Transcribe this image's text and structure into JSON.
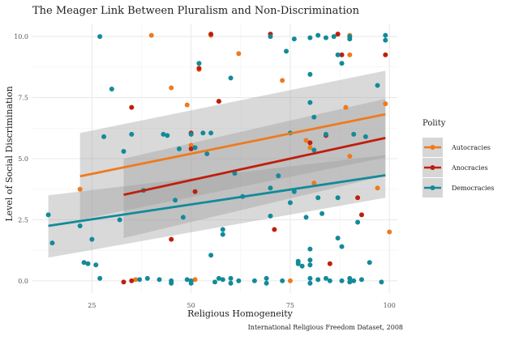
{
  "chart_data": {
    "type": "scatter",
    "title": "The Meager Link Between Pluralism and Non-Discrimination",
    "xlabel": "Religious Homogeneity",
    "ylabel": "Level of Social Discrimination",
    "caption": "International Religious Freedom Dataset, 2008",
    "xlim": [
      10,
      102
    ],
    "ylim": [
      -0.5,
      10.5
    ],
    "x_ticks": [
      25,
      50,
      75,
      100
    ],
    "y_ticks": [
      0.0,
      2.5,
      5.0,
      7.5,
      10.0
    ],
    "x_tick_labels": [
      "25",
      "50",
      "75",
      "100"
    ],
    "y_tick_labels": [
      "0.0",
      "2.5",
      "5.0",
      "7.5",
      "10.0"
    ],
    "grid": true,
    "legend": {
      "title": "Polity",
      "position": "right"
    },
    "series": [
      {
        "name": "Autocracies",
        "color": "#ee7a1f",
        "fit": {
          "x0": 22,
          "y0": 4.28,
          "x1": 99,
          "y1": 6.82,
          "ci_low_start": 2.5,
          "ci_high_start": 6.05,
          "ci_low_end": 5.05,
          "ci_high_end": 8.6
        },
        "points": [
          [
            22,
            3.75
          ],
          [
            36,
            0.05
          ],
          [
            40,
            10.05
          ],
          [
            45,
            7.9
          ],
          [
            49,
            7.2
          ],
          [
            50,
            5.55
          ],
          [
            51,
            0.05
          ],
          [
            52,
            8.65
          ],
          [
            55,
            10.05
          ],
          [
            57,
            7.35
          ],
          [
            62,
            9.3
          ],
          [
            73,
            8.2
          ],
          [
            75,
            0.0
          ],
          [
            79,
            5.75
          ],
          [
            80,
            5.45
          ],
          [
            81,
            4.0
          ],
          [
            87,
            10.1
          ],
          [
            89,
            7.1
          ],
          [
            90,
            9.25
          ],
          [
            90,
            5.1
          ],
          [
            90,
            10.05
          ],
          [
            97,
            3.8
          ],
          [
            99,
            7.25
          ],
          [
            100,
            2.0
          ]
        ]
      },
      {
        "name": "Anocracies",
        "color": "#bf1e0d",
        "fit": {
          "x0": 33,
          "y0": 3.52,
          "x1": 99,
          "y1": 5.85,
          "ci_low_start": 1.75,
          "ci_high_start": 5.0,
          "ci_low_end": 4.3,
          "ci_high_end": 7.45
        },
        "points": [
          [
            33,
            -0.05
          ],
          [
            35,
            0.0
          ],
          [
            35,
            7.1
          ],
          [
            45,
            1.7
          ],
          [
            50,
            6.05
          ],
          [
            50,
            5.4
          ],
          [
            51,
            3.65
          ],
          [
            52,
            8.7
          ],
          [
            55,
            10.1
          ],
          [
            57,
            7.35
          ],
          [
            70,
            10.1
          ],
          [
            71,
            2.1
          ],
          [
            80,
            5.65
          ],
          [
            84,
            5.95
          ],
          [
            85,
            0.7
          ],
          [
            87,
            10.1
          ],
          [
            88,
            9.25
          ],
          [
            92,
            3.4
          ],
          [
            93,
            2.7
          ],
          [
            99,
            9.25
          ]
        ]
      },
      {
        "name": "Democracies",
        "color": "#138a99",
        "fit": {
          "x0": 14,
          "y0": 2.25,
          "x1": 99,
          "y1": 4.32,
          "ci_low_start": 0.95,
          "ci_high_start": 3.5,
          "ci_low_end": 3.4,
          "ci_high_end": 5.15
        },
        "points": [
          [
            14,
            2.7
          ],
          [
            15,
            1.55
          ],
          [
            22,
            2.25
          ],
          [
            23,
            0.75
          ],
          [
            24,
            0.7
          ],
          [
            25,
            1.7
          ],
          [
            26,
            0.65
          ],
          [
            27,
            0.1
          ],
          [
            27,
            10.0
          ],
          [
            28,
            5.9
          ],
          [
            30,
            7.85
          ],
          [
            32,
            2.5
          ],
          [
            33,
            5.3
          ],
          [
            35,
            6.0
          ],
          [
            37,
            0.05
          ],
          [
            38,
            3.7
          ],
          [
            39,
            0.1
          ],
          [
            42,
            0.05
          ],
          [
            43,
            6.0
          ],
          [
            44,
            5.95
          ],
          [
            45,
            0.0
          ],
          [
            45,
            -0.1
          ],
          [
            46,
            3.3
          ],
          [
            47,
            5.4
          ],
          [
            48,
            2.6
          ],
          [
            49,
            0.05
          ],
          [
            50,
            -0.1
          ],
          [
            50,
            0.0
          ],
          [
            50,
            6.0
          ],
          [
            51,
            5.45
          ],
          [
            52,
            8.9
          ],
          [
            53,
            6.05
          ],
          [
            54,
            5.2
          ],
          [
            55,
            6.05
          ],
          [
            55,
            1.05
          ],
          [
            56,
            -0.05
          ],
          [
            57,
            0.1
          ],
          [
            58,
            1.9
          ],
          [
            58,
            2.1
          ],
          [
            58,
            0.05
          ],
          [
            60,
            8.3
          ],
          [
            60,
            0.1
          ],
          [
            60,
            -0.1
          ],
          [
            61,
            4.4
          ],
          [
            62,
            0.0
          ],
          [
            63,
            3.45
          ],
          [
            66,
            0.0
          ],
          [
            69,
            -0.1
          ],
          [
            69,
            0.1
          ],
          [
            70,
            10.0
          ],
          [
            70,
            3.8
          ],
          [
            70,
            2.65
          ],
          [
            72,
            4.3
          ],
          [
            73,
            0.0
          ],
          [
            74,
            9.4
          ],
          [
            75,
            6.05
          ],
          [
            75,
            3.2
          ],
          [
            76,
            9.9
          ],
          [
            76,
            3.65
          ],
          [
            77,
            0.7
          ],
          [
            77,
            0.8
          ],
          [
            78,
            0.6
          ],
          [
            79,
            2.6
          ],
          [
            80,
            9.95
          ],
          [
            80,
            8.45
          ],
          [
            80,
            7.3
          ],
          [
            80,
            1.3
          ],
          [
            80,
            0.85
          ],
          [
            80,
            0.65
          ],
          [
            80,
            0.1
          ],
          [
            80,
            -0.1
          ],
          [
            81,
            6.7
          ],
          [
            81,
            5.35
          ],
          [
            82,
            10.05
          ],
          [
            82,
            0.05
          ],
          [
            82,
            3.4
          ],
          [
            83,
            2.75
          ],
          [
            84,
            9.95
          ],
          [
            84,
            6.0
          ],
          [
            84,
            0.1
          ],
          [
            85,
            0.0
          ],
          [
            86,
            10.0
          ],
          [
            87,
            9.25
          ],
          [
            87,
            3.4
          ],
          [
            87,
            1.75
          ],
          [
            88,
            8.9
          ],
          [
            88,
            1.4
          ],
          [
            88,
            0.0
          ],
          [
            90,
            10.0
          ],
          [
            90,
            9.9
          ],
          [
            90,
            0.1
          ],
          [
            90,
            -0.05
          ],
          [
            91,
            0.0
          ],
          [
            91,
            6.0
          ],
          [
            92,
            2.4
          ],
          [
            93,
            0.05
          ],
          [
            94,
            5.9
          ],
          [
            95,
            0.75
          ],
          [
            97,
            8.0
          ],
          [
            98,
            -0.05
          ],
          [
            99,
            9.85
          ],
          [
            99,
            10.05
          ]
        ]
      }
    ]
  }
}
